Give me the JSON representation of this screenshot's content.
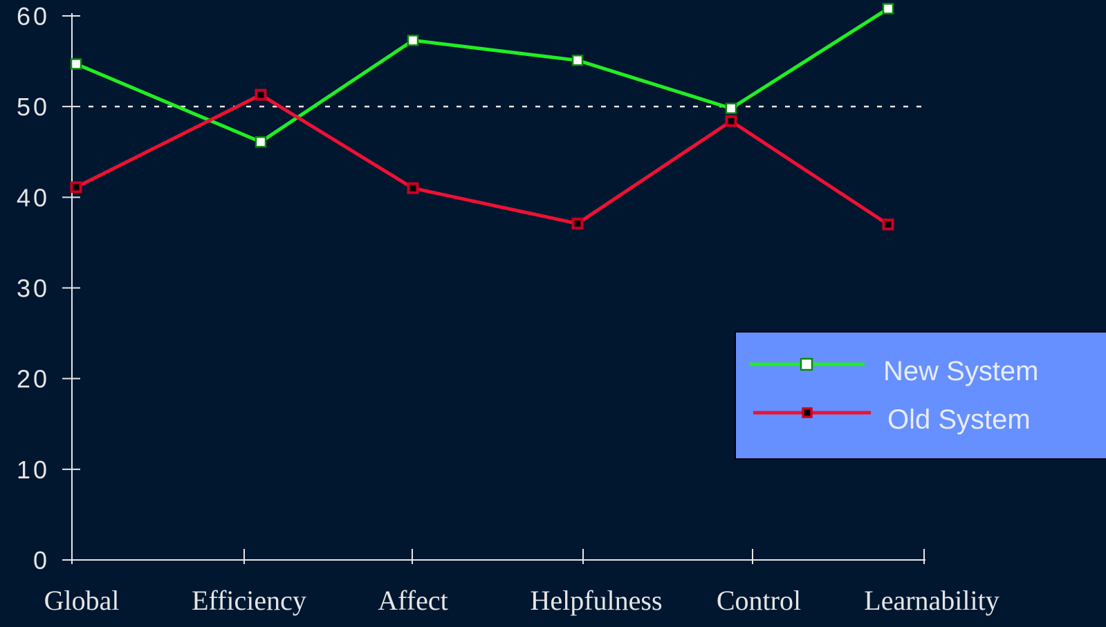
{
  "chart_data": {
    "type": "line",
    "categories": [
      "Global",
      "Efficiency",
      "Affect",
      "Helpfulness",
      "Control",
      "Learnability"
    ],
    "series": [
      {
        "name": "New System",
        "values": [
          54.7,
          46.1,
          57.3,
          55.1,
          49.8,
          60.8
        ],
        "color": "#22ee22",
        "marker_fill": "#ffffff",
        "marker_stroke": "#0a8a0a"
      },
      {
        "name": "Old System",
        "values": [
          41.1,
          51.3,
          41.0,
          37.1,
          48.4,
          37.0
        ],
        "color": "#ee1133",
        "marker_fill": "#000000",
        "marker_stroke": "#cc0022"
      }
    ],
    "yticks": [
      0,
      10,
      20,
      30,
      40,
      50,
      60
    ],
    "ylim": [
      0,
      60
    ],
    "reference_line": 50,
    "title": "",
    "xlabel": "",
    "ylabel": "",
    "grid": false,
    "legend_position": "right"
  },
  "colors": {
    "background": "#011730",
    "axis": "#e6e6e6",
    "text": "#e6e6e6",
    "legend_bg": "#6690ff",
    "legend_text": "#e8ecf5"
  }
}
